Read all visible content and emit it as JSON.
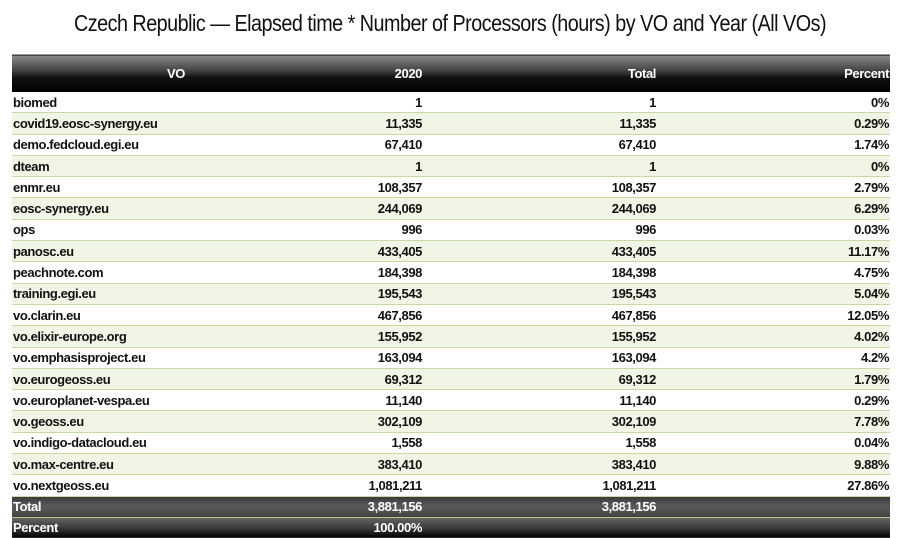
{
  "title": "Czech Republic — Elapsed time * Number of Processors (hours) by VO and Year (All VOs)",
  "table": {
    "headers": [
      "VO",
      "2020",
      "Total",
      "Percent"
    ],
    "rows": [
      [
        "biomed",
        "1",
        "1",
        "0%"
      ],
      [
        "covid19.eosc-synergy.eu",
        "11,335",
        "11,335",
        "0.29%"
      ],
      [
        "demo.fedcloud.egi.eu",
        "67,410",
        "67,410",
        "1.74%"
      ],
      [
        "dteam",
        "1",
        "1",
        "0%"
      ],
      [
        "enmr.eu",
        "108,357",
        "108,357",
        "2.79%"
      ],
      [
        "eosc-synergy.eu",
        "244,069",
        "244,069",
        "6.29%"
      ],
      [
        "ops",
        "996",
        "996",
        "0.03%"
      ],
      [
        "panosc.eu",
        "433,405",
        "433,405",
        "11.17%"
      ],
      [
        "peachnote.com",
        "184,398",
        "184,398",
        "4.75%"
      ],
      [
        "training.egi.eu",
        "195,543",
        "195,543",
        "5.04%"
      ],
      [
        "vo.clarin.eu",
        "467,856",
        "467,856",
        "12.05%"
      ],
      [
        "vo.elixir-europe.org",
        "155,952",
        "155,952",
        "4.02%"
      ],
      [
        "vo.emphasisproject.eu",
        "163,094",
        "163,094",
        "4.2%"
      ],
      [
        "vo.eurogeoss.eu",
        "69,312",
        "69,312",
        "1.79%"
      ],
      [
        "vo.europlanet-vespa.eu",
        "11,140",
        "11,140",
        "0.29%"
      ],
      [
        "vo.geoss.eu",
        "302,109",
        "302,109",
        "7.78%"
      ],
      [
        "vo.indigo-datacloud.eu",
        "1,558",
        "1,558",
        "0.04%"
      ],
      [
        "vo.max-centre.eu",
        "383,410",
        "383,410",
        "9.88%"
      ],
      [
        "vo.nextgeoss.eu",
        "1,081,211",
        "1,081,211",
        "27.86%"
      ]
    ],
    "total_row": [
      "Total",
      "3,881,156",
      "3,881,156",
      ""
    ],
    "percent_row": [
      "Percent",
      "100.00%",
      "",
      ""
    ]
  }
}
